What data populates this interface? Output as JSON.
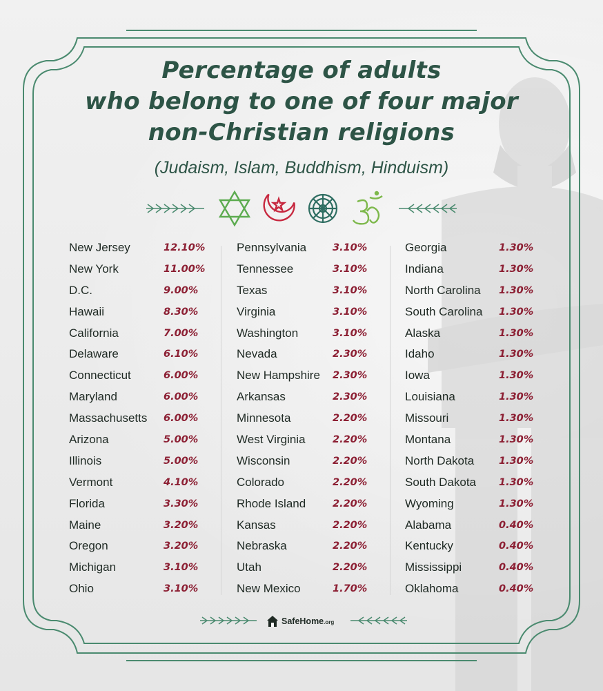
{
  "title_lines": [
    "Percentage of adults",
    "who belong to one of four major",
    "non-Christian religions"
  ],
  "subtitle": "(Judaism, Islam, Buddhism, Hinduism)",
  "icons": [
    "star-of-david-icon",
    "crescent-star-icon",
    "dharma-wheel-icon",
    "om-icon"
  ],
  "colors": {
    "frame": "#4a8a6f",
    "title": "#2d5446",
    "value": "#8c1f33",
    "text": "#1f2a24"
  },
  "brand": {
    "name": "SafeHome",
    "suffix": ".org"
  },
  "chart_data": {
    "type": "table",
    "columns": [
      [
        {
          "state": "New Jersey",
          "value": "12.10%"
        },
        {
          "state": "New York",
          "value": "11.00%"
        },
        {
          "state": "D.C.",
          "value": "9.00%"
        },
        {
          "state": "Hawaii",
          "value": "8.30%"
        },
        {
          "state": "California",
          "value": "7.00%"
        },
        {
          "state": "Delaware",
          "value": "6.10%"
        },
        {
          "state": "Connecticut",
          "value": "6.00%"
        },
        {
          "state": "Maryland",
          "value": "6.00%"
        },
        {
          "state": "Massachusetts",
          "value": "6.00%"
        },
        {
          "state": "Arizona",
          "value": "5.00%"
        },
        {
          "state": "Illinois",
          "value": "5.00%"
        },
        {
          "state": "Vermont",
          "value": "4.10%"
        },
        {
          "state": "Florida",
          "value": "3.30%"
        },
        {
          "state": "Maine",
          "value": "3.20%"
        },
        {
          "state": "Oregon",
          "value": "3.20%"
        },
        {
          "state": "Michigan",
          "value": "3.10%"
        },
        {
          "state": "Ohio",
          "value": "3.10%"
        }
      ],
      [
        {
          "state": "Pennsylvania",
          "value": "3.10%"
        },
        {
          "state": "Tennessee",
          "value": "3.10%"
        },
        {
          "state": "Texas",
          "value": "3.10%"
        },
        {
          "state": "Virginia",
          "value": "3.10%"
        },
        {
          "state": "Washington",
          "value": "3.10%"
        },
        {
          "state": "Nevada",
          "value": "2.30%"
        },
        {
          "state": "New Hampshire",
          "value": "2.30%"
        },
        {
          "state": "Arkansas",
          "value": "2.30%"
        },
        {
          "state": "Minnesota",
          "value": "2.20%"
        },
        {
          "state": "West Virginia",
          "value": "2.20%"
        },
        {
          "state": "Wisconsin",
          "value": "2.20%"
        },
        {
          "state": "Colorado",
          "value": "2.20%"
        },
        {
          "state": "Rhode Island",
          "value": "2.20%"
        },
        {
          "state": "Kansas",
          "value": "2.20%"
        },
        {
          "state": "Nebraska",
          "value": "2.20%"
        },
        {
          "state": "Utah",
          "value": "2.20%"
        },
        {
          "state": "New Mexico",
          "value": "1.70%"
        }
      ],
      [
        {
          "state": "Georgia",
          "value": "1.30%"
        },
        {
          "state": "Indiana",
          "value": "1.30%"
        },
        {
          "state": "North Carolina",
          "value": "1.30%"
        },
        {
          "state": "South Carolina",
          "value": "1.30%"
        },
        {
          "state": "Alaska",
          "value": "1.30%"
        },
        {
          "state": "Idaho",
          "value": "1.30%"
        },
        {
          "state": "Iowa",
          "value": "1.30%"
        },
        {
          "state": "Louisiana",
          "value": "1.30%"
        },
        {
          "state": "Missouri",
          "value": "1.30%"
        },
        {
          "state": "Montana",
          "value": "1.30%"
        },
        {
          "state": "North Dakota",
          "value": "1.30%"
        },
        {
          "state": "South Dakota",
          "value": "1.30%"
        },
        {
          "state": "Wyoming",
          "value": "1.30%"
        },
        {
          "state": "Alabama",
          "value": "0.40%"
        },
        {
          "state": "Kentucky",
          "value": "0.40%"
        },
        {
          "state": "Mississippi",
          "value": "0.40%"
        },
        {
          "state": "Oklahoma",
          "value": "0.40%"
        }
      ]
    ]
  }
}
